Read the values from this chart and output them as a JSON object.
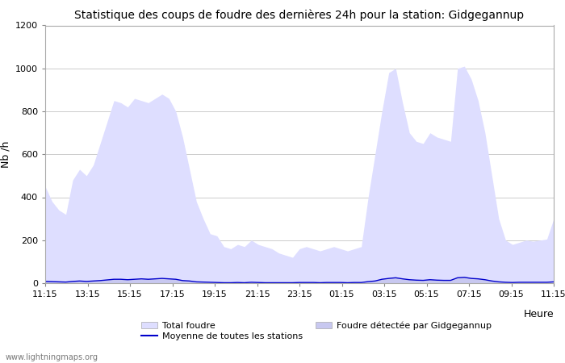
{
  "title": "Statistique des coups de foudre des dernières 24h pour la station: Gidgegannup",
  "xlabel": "Heure",
  "ylabel": "Nb /h",
  "ylim": [
    0,
    1200
  ],
  "yticks": [
    0,
    200,
    400,
    600,
    800,
    1000,
    1200
  ],
  "xtick_labels": [
    "11:15",
    "13:15",
    "15:15",
    "17:15",
    "19:15",
    "21:15",
    "23:15",
    "01:15",
    "03:15",
    "05:15",
    "07:15",
    "09:15",
    "11:15"
  ],
  "fill_color_total": "#dedeff",
  "fill_color_station": "#c8c8f0",
  "line_color_moyenne": "#0000cc",
  "background_color": "#ffffff",
  "grid_color": "#cccccc",
  "watermark": "www.lightningmaps.org",
  "legend_total": "Total foudre",
  "legend_moyenne": "Moyenne de toutes les stations",
  "legend_station": "Foudre détectée par Gidgegannup",
  "total_foudre": [
    450,
    380,
    340,
    320,
    480,
    530,
    500,
    550,
    650,
    750,
    850,
    840,
    820,
    860,
    850,
    840,
    860,
    880,
    860,
    800,
    680,
    530,
    380,
    300,
    230,
    220,
    170,
    160,
    180,
    170,
    200,
    180,
    170,
    160,
    140,
    130,
    120,
    160,
    170,
    160,
    150,
    160,
    170,
    160,
    150,
    160,
    170,
    400,
    600,
    800,
    980,
    1000,
    840,
    700,
    660,
    650,
    700,
    680,
    670,
    660,
    1000,
    1010,
    950,
    850,
    700,
    500,
    300,
    200,
    180,
    190,
    200,
    195,
    200,
    205,
    300
  ],
  "station_foudre": [
    10,
    8,
    6,
    5,
    10,
    12,
    10,
    12,
    15,
    18,
    20,
    20,
    18,
    20,
    22,
    20,
    22,
    25,
    22,
    20,
    15,
    12,
    8,
    6,
    5,
    4,
    3,
    3,
    4,
    3,
    5,
    4,
    3,
    3,
    3,
    3,
    3,
    4,
    4,
    4,
    3,
    4,
    4,
    4,
    3,
    4,
    4,
    8,
    12,
    20,
    25,
    28,
    22,
    18,
    16,
    15,
    18,
    16,
    15,
    15,
    28,
    30,
    25,
    22,
    18,
    12,
    8,
    5,
    4,
    5,
    5,
    5,
    5,
    5,
    8
  ],
  "moyenne": [
    8,
    7,
    6,
    5,
    8,
    10,
    8,
    10,
    12,
    15,
    18,
    18,
    16,
    18,
    20,
    18,
    20,
    22,
    20,
    18,
    12,
    10,
    6,
    5,
    4,
    3,
    2,
    2,
    3,
    2,
    4,
    3,
    2,
    2,
    2,
    2,
    2,
    3,
    3,
    3,
    2,
    3,
    3,
    3,
    2,
    3,
    3,
    7,
    10,
    18,
    22,
    25,
    20,
    16,
    14,
    13,
    16,
    14,
    13,
    13,
    25,
    27,
    22,
    20,
    16,
    10,
    6,
    4,
    3,
    4,
    4,
    4,
    4,
    4,
    6
  ]
}
